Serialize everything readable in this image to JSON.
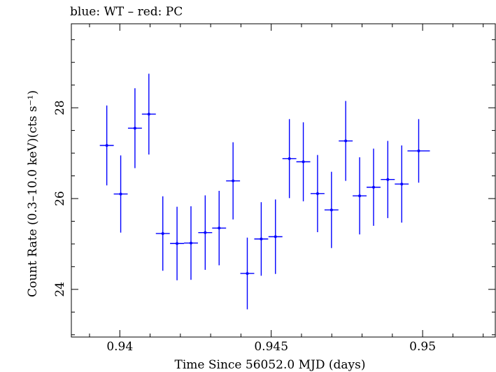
{
  "chart_data": {
    "type": "scatter",
    "title": "blue: WT – red: PC",
    "xlabel": "Time Since 56052.0 MJD (days)",
    "ylabel": "Count Rate (0.3–10.0 keV)(cts s⁻¹)",
    "xlim": [
      0.9384,
      0.9524
    ],
    "ylim": [
      22.95,
      29.85
    ],
    "x_ticks": [
      0.94,
      0.945,
      0.95
    ],
    "x_tick_labels": [
      "0.94",
      "0.945",
      "0.95"
    ],
    "y_ticks": [
      24,
      26,
      28
    ],
    "y_tick_labels": [
      "24",
      "26",
      "28"
    ],
    "grid": false,
    "series": [
      {
        "color": "#0000ff",
        "points": [
          {
            "x": 0.93957,
            "y": 27.17,
            "xerr": 0.00023,
            "yerr": 0.88
          },
          {
            "x": 0.94003,
            "y": 26.1,
            "xerr": 0.00023,
            "yerr": 0.85
          },
          {
            "x": 0.9405,
            "y": 27.55,
            "xerr": 0.00023,
            "yerr": 0.88
          },
          {
            "x": 0.94096,
            "y": 27.86,
            "xerr": 0.00023,
            "yerr": 0.89
          },
          {
            "x": 0.94142,
            "y": 25.23,
            "xerr": 0.00023,
            "yerr": 0.82
          },
          {
            "x": 0.94189,
            "y": 25.01,
            "xerr": 0.00023,
            "yerr": 0.81
          },
          {
            "x": 0.94235,
            "y": 25.02,
            "xerr": 0.00023,
            "yerr": 0.81
          },
          {
            "x": 0.94282,
            "y": 25.25,
            "xerr": 0.00023,
            "yerr": 0.82
          },
          {
            "x": 0.94328,
            "y": 25.35,
            "xerr": 0.00023,
            "yerr": 0.82
          },
          {
            "x": 0.94374,
            "y": 26.39,
            "xerr": 0.00023,
            "yerr": 0.85
          },
          {
            "x": 0.94421,
            "y": 24.35,
            "xerr": 0.00023,
            "yerr": 0.79
          },
          {
            "x": 0.94467,
            "y": 25.11,
            "xerr": 0.00023,
            "yerr": 0.81
          },
          {
            "x": 0.94514,
            "y": 25.16,
            "xerr": 0.00023,
            "yerr": 0.82
          },
          {
            "x": 0.9456,
            "y": 26.88,
            "xerr": 0.00023,
            "yerr": 0.87
          },
          {
            "x": 0.94606,
            "y": 26.81,
            "xerr": 0.00023,
            "yerr": 0.87
          },
          {
            "x": 0.94653,
            "y": 26.11,
            "xerr": 0.00023,
            "yerr": 0.85
          },
          {
            "x": 0.94699,
            "y": 25.75,
            "xerr": 0.00023,
            "yerr": 0.84
          },
          {
            "x": 0.94746,
            "y": 27.27,
            "xerr": 0.00023,
            "yerr": 0.88
          },
          {
            "x": 0.94792,
            "y": 26.06,
            "xerr": 0.00023,
            "yerr": 0.85
          },
          {
            "x": 0.94838,
            "y": 26.25,
            "xerr": 0.00023,
            "yerr": 0.85
          },
          {
            "x": 0.94885,
            "y": 26.42,
            "xerr": 0.00023,
            "yerr": 0.85
          },
          {
            "x": 0.94931,
            "y": 26.32,
            "xerr": 0.00023,
            "yerr": 0.85
          },
          {
            "x": 0.94987,
            "y": 27.05,
            "xerr": 0.00037,
            "yerr": 0.7
          }
        ]
      }
    ]
  }
}
